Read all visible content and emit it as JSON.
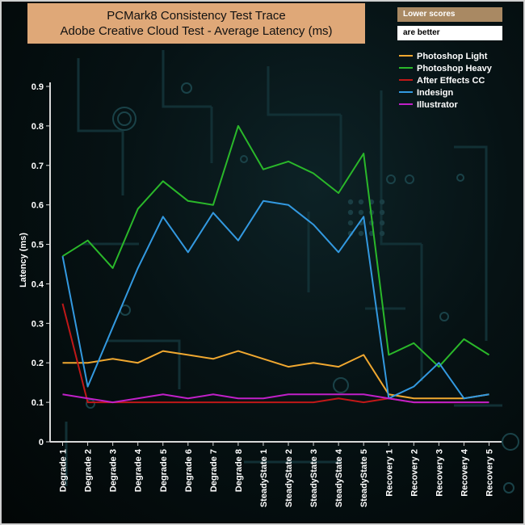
{
  "chart_data": {
    "type": "line",
    "title": "PCMark8 Consistency Test Trace",
    "subtitle": "Adobe Creative Cloud Test -  Average Latency (ms)",
    "ylabel": "Latency (ms)",
    "xlabel": "",
    "ylim": [
      0,
      0.9
    ],
    "yticks": [
      "0",
      "0.1",
      "0.2",
      "0.3",
      "0.4",
      "0.5",
      "0.6",
      "0.7",
      "0.8",
      "0.9"
    ],
    "grid": false,
    "legend_position": "top-right",
    "notes": [
      "Lower scores",
      "are better"
    ],
    "categories": [
      "Degrade 1",
      "Degrade 2",
      "Degrade 3",
      "Degrade 4",
      "Degrade 5",
      "Degrade 6",
      "Degrade 7",
      "Degrade 8",
      "SteadyState 1",
      "SteadyState 2",
      "SteadyState 3",
      "SteadyState 4",
      "SteadyState 5",
      "Recovery 1",
      "Recovery 2",
      "Recovery 3",
      "Recovery 4",
      "Recovery 5"
    ],
    "series": [
      {
        "name": "Photoshop Light",
        "color": "#f0a830",
        "values": [
          0.2,
          0.2,
          0.21,
          0.2,
          0.23,
          0.22,
          0.21,
          0.23,
          0.21,
          0.19,
          0.2,
          0.19,
          0.22,
          0.12,
          0.11,
          0.11,
          0.11,
          0.12
        ]
      },
      {
        "name": "Photoshop Heavy",
        "color": "#2ab82a",
        "values": [
          0.47,
          0.51,
          0.44,
          0.59,
          0.66,
          0.61,
          0.6,
          0.8,
          0.69,
          0.71,
          0.68,
          0.63,
          0.73,
          0.22,
          0.25,
          0.19,
          0.26,
          0.22
        ]
      },
      {
        "name": "After Effects CC",
        "color": "#c01818",
        "values": [
          0.35,
          0.1,
          0.1,
          0.1,
          0.1,
          0.1,
          0.1,
          0.1,
          0.1,
          0.1,
          0.1,
          0.11,
          0.1,
          0.11,
          0.1,
          0.1,
          0.1,
          0.1
        ]
      },
      {
        "name": "Indesign",
        "color": "#3399e0",
        "values": [
          0.47,
          0.14,
          0.29,
          0.44,
          0.57,
          0.48,
          0.58,
          0.51,
          0.61,
          0.6,
          0.55,
          0.48,
          0.57,
          0.11,
          0.14,
          0.2,
          0.11,
          0.12
        ]
      },
      {
        "name": "Illustrator",
        "color": "#c020c8",
        "values": [
          0.12,
          0.11,
          0.1,
          0.11,
          0.12,
          0.11,
          0.12,
          0.11,
          0.11,
          0.12,
          0.12,
          0.12,
          0.12,
          0.11,
          0.1,
          0.1,
          0.1,
          0.1
        ]
      }
    ]
  }
}
